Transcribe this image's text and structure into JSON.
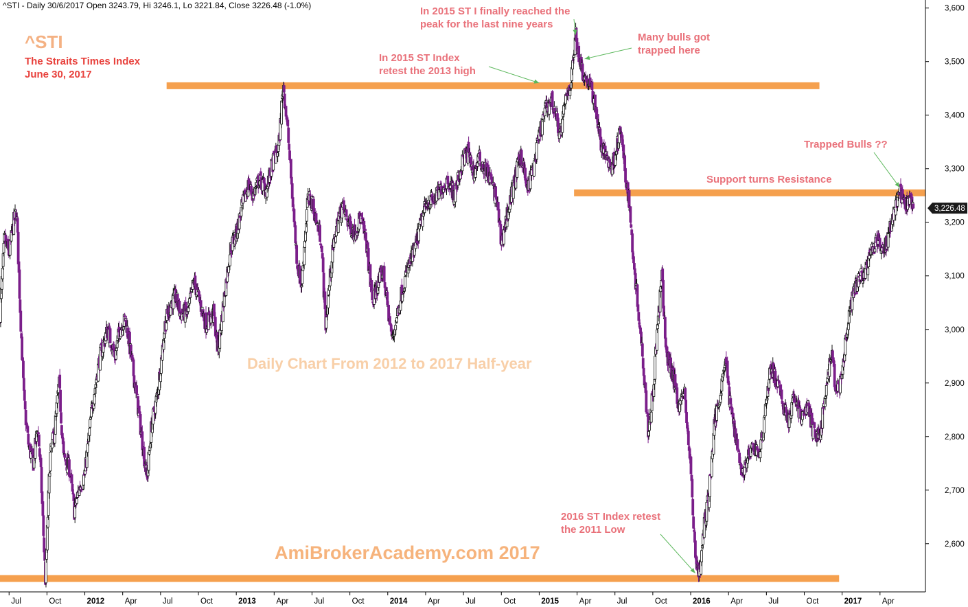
{
  "chart_data": {
    "type": "candlestick",
    "header": "^STI - Daily 30/6/2017 Open 3243.79, Hi 3246.1, Lo 3221.84, Close 3226.48 (-1.0%)",
    "title": "^STI",
    "subtitle_lines": [
      "The Straits Times Index",
      "June 30, 2017"
    ],
    "watermark_main": "Daily Chart From 2012 to 2017 Half-year",
    "watermark_site": "AmiBrokerAcademy.com  2017",
    "last_close": 3226.48,
    "last_close_label": "3,226.48",
    "ylim": [
      2510,
      3615
    ],
    "y_ticks": [
      {
        "v": 2600,
        "label": "2,600"
      },
      {
        "v": 2700,
        "label": "2,700"
      },
      {
        "v": 2800,
        "label": "2,800"
      },
      {
        "v": 2900,
        "label": "2,900"
      },
      {
        "v": 3000,
        "label": "3,000"
      },
      {
        "v": 3100,
        "label": "3,100"
      },
      {
        "v": 3200,
        "label": "3,200"
      },
      {
        "v": 3300,
        "label": "3,300"
      },
      {
        "v": 3400,
        "label": "3,400"
      },
      {
        "v": 3500,
        "label": "3,500"
      },
      {
        "v": 3600,
        "label": "3,600"
      }
    ],
    "x_ticks": [
      {
        "t": 2011.5,
        "label": "Jul",
        "bold": false
      },
      {
        "t": 2011.75,
        "label": "Oct",
        "bold": false
      },
      {
        "t": 2012.0,
        "label": "2012",
        "bold": true
      },
      {
        "t": 2012.25,
        "label": "Apr",
        "bold": false
      },
      {
        "t": 2012.5,
        "label": "Jul",
        "bold": false
      },
      {
        "t": 2012.75,
        "label": "Oct",
        "bold": false
      },
      {
        "t": 2013.0,
        "label": "2013",
        "bold": true
      },
      {
        "t": 2013.25,
        "label": "Apr",
        "bold": false
      },
      {
        "t": 2013.5,
        "label": "Jul",
        "bold": false
      },
      {
        "t": 2013.75,
        "label": "Oct",
        "bold": false
      },
      {
        "t": 2014.0,
        "label": "2014",
        "bold": true
      },
      {
        "t": 2014.25,
        "label": "Apr",
        "bold": false
      },
      {
        "t": 2014.5,
        "label": "Jul",
        "bold": false
      },
      {
        "t": 2014.75,
        "label": "Oct",
        "bold": false
      },
      {
        "t": 2015.0,
        "label": "2015",
        "bold": true
      },
      {
        "t": 2015.25,
        "label": "Apr",
        "bold": false
      },
      {
        "t": 2015.5,
        "label": "Jul",
        "bold": false
      },
      {
        "t": 2015.75,
        "label": "Oct",
        "bold": false
      },
      {
        "t": 2016.0,
        "label": "2016",
        "bold": true
      },
      {
        "t": 2016.25,
        "label": "Apr",
        "bold": false
      },
      {
        "t": 2016.5,
        "label": "Jul",
        "bold": false
      },
      {
        "t": 2016.75,
        "label": "Oct",
        "bold": false
      },
      {
        "t": 2017.0,
        "label": "2017",
        "bold": true
      },
      {
        "t": 2017.25,
        "label": "Apr",
        "bold": false
      }
    ],
    "x_range": [
      2011.44,
      2017.55
    ],
    "price_path": [
      [
        2011.44,
        3030
      ],
      [
        2011.47,
        3170
      ],
      [
        2011.5,
        3140
      ],
      [
        2011.53,
        3200
      ],
      [
        2011.55,
        3220
      ],
      [
        2011.57,
        3060
      ],
      [
        2011.6,
        2860
      ],
      [
        2011.63,
        2780
      ],
      [
        2011.66,
        2750
      ],
      [
        2011.69,
        2820
      ],
      [
        2011.71,
        2730
      ],
      [
        2011.74,
        2530
      ],
      [
        2011.77,
        2760
      ],
      [
        2011.8,
        2810
      ],
      [
        2011.83,
        2900
      ],
      [
        2011.86,
        2760
      ],
      [
        2011.9,
        2740
      ],
      [
        2011.93,
        2660
      ],
      [
        2011.96,
        2700
      ],
      [
        2012.0,
        2730
      ],
      [
        2012.05,
        2860
      ],
      [
        2012.1,
        2950
      ],
      [
        2012.15,
        3000
      ],
      [
        2012.2,
        2950
      ],
      [
        2012.23,
        3000
      ],
      [
        2012.27,
        3020
      ],
      [
        2012.3,
        2960
      ],
      [
        2012.34,
        2880
      ],
      [
        2012.38,
        2790
      ],
      [
        2012.41,
        2720
      ],
      [
        2012.44,
        2820
      ],
      [
        2012.48,
        2880
      ],
      [
        2012.53,
        3010
      ],
      [
        2012.57,
        3050
      ],
      [
        2012.6,
        3060
      ],
      [
        2012.63,
        3030
      ],
      [
        2012.68,
        3030
      ],
      [
        2012.72,
        3090
      ],
      [
        2012.76,
        3050
      ],
      [
        2012.8,
        3010
      ],
      [
        2012.85,
        3030
      ],
      [
        2012.88,
        2960
      ],
      [
        2012.92,
        3060
      ],
      [
        2012.96,
        3150
      ],
      [
        2013.0,
        3180
      ],
      [
        2013.04,
        3230
      ],
      [
        2013.08,
        3270
      ],
      [
        2013.11,
        3250
      ],
      [
        2013.15,
        3280
      ],
      [
        2013.2,
        3260
      ],
      [
        2013.24,
        3310
      ],
      [
        2013.28,
        3340
      ],
      [
        2013.31,
        3460
      ],
      [
        2013.34,
        3370
      ],
      [
        2013.37,
        3250
      ],
      [
        2013.4,
        3130
      ],
      [
        2013.43,
        3080
      ],
      [
        2013.47,
        3240
      ],
      [
        2013.5,
        3240
      ],
      [
        2013.53,
        3200
      ],
      [
        2013.56,
        3170
      ],
      [
        2013.59,
        3010
      ],
      [
        2013.63,
        3130
      ],
      [
        2013.66,
        3190
      ],
      [
        2013.7,
        3230
      ],
      [
        2013.74,
        3200
      ],
      [
        2013.78,
        3180
      ],
      [
        2013.82,
        3210
      ],
      [
        2013.86,
        3160
      ],
      [
        2013.9,
        3050
      ],
      [
        2013.93,
        3080
      ],
      [
        2013.97,
        3110
      ],
      [
        2014.0,
        3040
      ],
      [
        2014.03,
        2980
      ],
      [
        2014.07,
        3040
      ],
      [
        2014.1,
        3080
      ],
      [
        2014.14,
        3120
      ],
      [
        2014.18,
        3150
      ],
      [
        2014.22,
        3200
      ],
      [
        2014.26,
        3240
      ],
      [
        2014.3,
        3240
      ],
      [
        2014.35,
        3260
      ],
      [
        2014.4,
        3280
      ],
      [
        2014.44,
        3250
      ],
      [
        2014.5,
        3320
      ],
      [
        2014.53,
        3330
      ],
      [
        2014.57,
        3290
      ],
      [
        2014.6,
        3320
      ],
      [
        2014.64,
        3300
      ],
      [
        2014.68,
        3280
      ],
      [
        2014.72,
        3240
      ],
      [
        2014.75,
        3160
      ],
      [
        2014.8,
        3230
      ],
      [
        2014.84,
        3280
      ],
      [
        2014.88,
        3330
      ],
      [
        2014.92,
        3260
      ],
      [
        2014.96,
        3300
      ],
      [
        2015.0,
        3360
      ],
      [
        2015.04,
        3410
      ],
      [
        2015.08,
        3430
      ],
      [
        2015.11,
        3400
      ],
      [
        2015.14,
        3360
      ],
      [
        2015.18,
        3440
      ],
      [
        2015.21,
        3460
      ],
      [
        2015.24,
        3550
      ],
      [
        2015.27,
        3500
      ],
      [
        2015.3,
        3470
      ],
      [
        2015.33,
        3460
      ],
      [
        2015.37,
        3420
      ],
      [
        2015.41,
        3340
      ],
      [
        2015.45,
        3320
      ],
      [
        2015.48,
        3300
      ],
      [
        2015.51,
        3340
      ],
      [
        2015.54,
        3370
      ],
      [
        2015.57,
        3280
      ],
      [
        2015.59,
        3250
      ],
      [
        2015.62,
        3140
      ],
      [
        2015.66,
        3020
      ],
      [
        2015.69,
        2930
      ],
      [
        2015.72,
        2810
      ],
      [
        2015.75,
        2880
      ],
      [
        2015.78,
        3000
      ],
      [
        2015.81,
        3100
      ],
      [
        2015.84,
        2950
      ],
      [
        2015.88,
        2920
      ],
      [
        2015.92,
        2860
      ],
      [
        2015.96,
        2880
      ],
      [
        2016.0,
        2740
      ],
      [
        2016.03,
        2580
      ],
      [
        2016.06,
        2540
      ],
      [
        2016.09,
        2640
      ],
      [
        2016.12,
        2690
      ],
      [
        2016.16,
        2830
      ],
      [
        2016.2,
        2890
      ],
      [
        2016.23,
        2950
      ],
      [
        2016.26,
        2860
      ],
      [
        2016.3,
        2800
      ],
      [
        2016.34,
        2730
      ],
      [
        2016.38,
        2760
      ],
      [
        2016.42,
        2780
      ],
      [
        2016.46,
        2770
      ],
      [
        2016.49,
        2850
      ],
      [
        2016.53,
        2930
      ],
      [
        2016.57,
        2900
      ],
      [
        2016.61,
        2860
      ],
      [
        2016.65,
        2830
      ],
      [
        2016.69,
        2880
      ],
      [
        2016.73,
        2830
      ],
      [
        2016.77,
        2860
      ],
      [
        2016.81,
        2810
      ],
      [
        2016.85,
        2800
      ],
      [
        2016.89,
        2870
      ],
      [
        2016.93,
        2960
      ],
      [
        2016.96,
        2880
      ],
      [
        2017.0,
        2910
      ],
      [
        2017.04,
        3020
      ],
      [
        2017.08,
        3070
      ],
      [
        2017.12,
        3100
      ],
      [
        2017.16,
        3110
      ],
      [
        2017.2,
        3150
      ],
      [
        2017.24,
        3170
      ],
      [
        2017.28,
        3150
      ],
      [
        2017.31,
        3180
      ],
      [
        2017.35,
        3230
      ],
      [
        2017.38,
        3260
      ],
      [
        2017.41,
        3230
      ],
      [
        2017.44,
        3240
      ],
      [
        2017.47,
        3226
      ]
    ],
    "support_resistance": [
      {
        "value": 3455,
        "from": 2012.54,
        "to": 2016.85,
        "color": "#f5a04e"
      },
      {
        "value": 3255,
        "from": 2015.23,
        "to": 2017.55,
        "color": "#f5a04e"
      },
      {
        "value": 2535,
        "from": 2011.44,
        "to": 2016.98,
        "color": "#f5a04e"
      }
    ],
    "annotations": [
      {
        "lines": [
          "In 2015 ST I finally reached the",
          "peak for the last nine years"
        ],
        "arrow_to": [
          2015.24,
          3550
        ]
      },
      {
        "lines": [
          "Many bulls got",
          "trapped here"
        ],
        "arrow_to": [
          2015.3,
          3505
        ]
      },
      {
        "lines": [
          "In 2015 ST Index",
          "retest the 2013 high"
        ],
        "arrow_to": [
          2015.0,
          3460
        ]
      },
      {
        "lines": [
          "Trapped Bulls ??"
        ],
        "arrow_to": [
          2017.38,
          3265
        ]
      },
      {
        "lines": [
          "Support turns Resistance"
        ],
        "arrow_to": null
      },
      {
        "lines": [
          "2016 ST Index retest",
          "the 2011 Low"
        ],
        "arrow_to": [
          2016.03,
          2545
        ]
      }
    ],
    "colors": {
      "down_candle": "#7b1e8a",
      "up_candle": "#111111",
      "level_line": "#f5a04e",
      "note_text": "#e9717a",
      "price_tag_bg": "#1a1a1a"
    }
  }
}
